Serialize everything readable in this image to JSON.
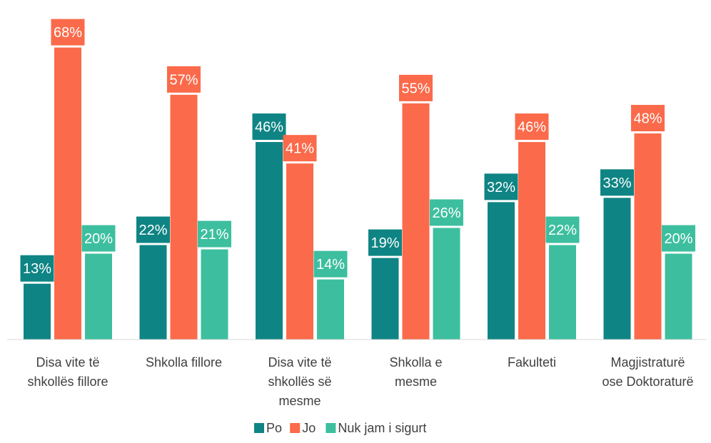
{
  "chart_data": {
    "type": "bar",
    "title": "",
    "xlabel": "",
    "ylabel": "",
    "ylim": [
      0,
      70
    ],
    "grid": false,
    "legend_position": "bottom",
    "categories": [
      [
        "Disa vite të",
        "shkollës fillore"
      ],
      [
        "Shkolla fillore"
      ],
      [
        "Disa vite të",
        "shkollës së",
        "mesme"
      ],
      [
        "Shkolla e",
        "mesme"
      ],
      [
        "Fakulteti"
      ],
      [
        "Magjistraturë",
        "ose Doktoraturë"
      ]
    ],
    "series": [
      {
        "name": "Po",
        "color": "#0f8484",
        "values": [
          13,
          22,
          46,
          19,
          32,
          33
        ]
      },
      {
        "name": "Jo",
        "color": "#fb6a4a",
        "values": [
          68,
          57,
          41,
          55,
          46,
          48
        ]
      },
      {
        "name": "Nuk jam i sigurt",
        "color": "#3dbf9f",
        "values": [
          20,
          21,
          14,
          26,
          22,
          20
        ]
      }
    ],
    "value_suffix": "%"
  }
}
